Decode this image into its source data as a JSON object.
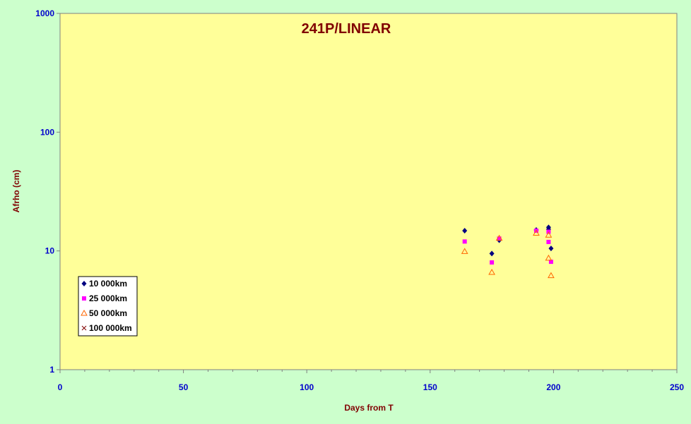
{
  "chart_data": {
    "type": "scatter",
    "title": "241P/LINEAR",
    "xlabel": "Days from T",
    "ylabel": "Afrho (cm)",
    "xlim": [
      0,
      250
    ],
    "ylim": [
      1,
      1000
    ],
    "y_scale": "log",
    "x_ticks": [
      "0",
      "50",
      "100",
      "150",
      "200",
      "250"
    ],
    "y_ticks": [
      "1",
      "10",
      "100",
      "1000"
    ],
    "legend_position": "bottom-left",
    "grid": false,
    "colors": {
      "plot_bg": "#ffff99",
      "page_bg": "#ccffcc",
      "series_10000": "#000080",
      "series_25000": "#ff00ff",
      "series_50000": "#ff6600",
      "series_100000": "#800000"
    },
    "series": [
      {
        "name": "10 000km",
        "marker": "diamond",
        "points": [
          {
            "x": 164,
            "y": 14.8
          },
          {
            "x": 175,
            "y": 9.5
          },
          {
            "x": 178,
            "y": 12.3
          },
          {
            "x": 193,
            "y": 15.0
          },
          {
            "x": 198,
            "y": 15.8
          },
          {
            "x": 198,
            "y": 15.2
          },
          {
            "x": 199,
            "y": 10.5
          }
        ]
      },
      {
        "name": "25 000km",
        "marker": "square",
        "points": [
          {
            "x": 164,
            "y": 12.0
          },
          {
            "x": 175,
            "y": 8.0
          },
          {
            "x": 178,
            "y": 12.7
          },
          {
            "x": 193,
            "y": 14.8
          },
          {
            "x": 198,
            "y": 14.5
          },
          {
            "x": 198,
            "y": 11.9
          },
          {
            "x": 199,
            "y": 8.1
          }
        ]
      },
      {
        "name": "50 000km",
        "marker": "triangle",
        "points": [
          {
            "x": 164,
            "y": 9.9
          },
          {
            "x": 175,
            "y": 6.6
          },
          {
            "x": 178,
            "y": 12.8
          },
          {
            "x": 193,
            "y": 14.1
          },
          {
            "x": 198,
            "y": 13.6
          },
          {
            "x": 198,
            "y": 8.7
          },
          {
            "x": 199,
            "y": 6.2
          }
        ]
      },
      {
        "name": "100 000km",
        "marker": "x",
        "points": []
      }
    ]
  }
}
